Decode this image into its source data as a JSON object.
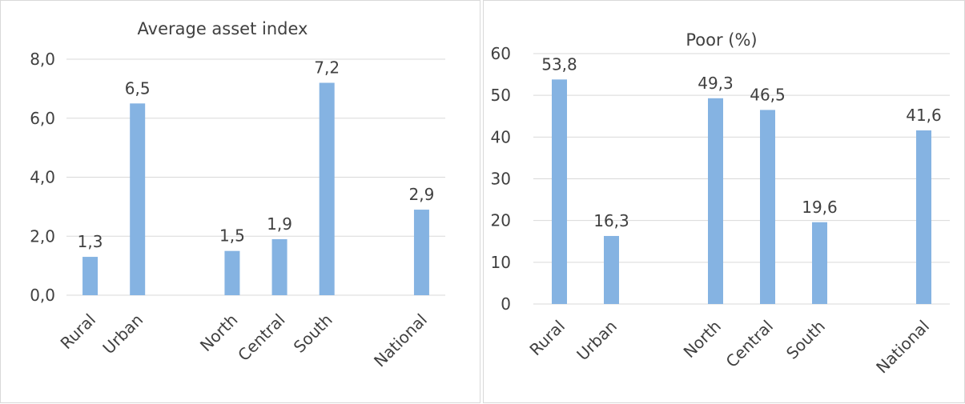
{
  "colors": {
    "bar": "#85b3e2",
    "grid": "#d9d9d9",
    "text": "#404040"
  },
  "chart_data": [
    {
      "type": "bar",
      "title": "Average asset  index",
      "categories": [
        "Rural",
        "Urban",
        "",
        "North",
        "Central",
        "South",
        "",
        "National"
      ],
      "values": [
        1.3,
        6.5,
        null,
        1.5,
        1.9,
        7.2,
        null,
        2.9
      ],
      "data_labels": [
        "1,3",
        "6,5",
        "",
        "1,5",
        "1,9",
        "7,2",
        "",
        "2,9"
      ],
      "yticks": [
        "0,0",
        "2,0",
        "4,0",
        "6,0",
        "8,0"
      ],
      "ylim": [
        0,
        8
      ],
      "grid": true
    },
    {
      "type": "bar",
      "title": "Poor (%)",
      "categories": [
        "Rural",
        "Urban",
        "",
        "North",
        "Central",
        "South",
        "",
        "National"
      ],
      "values": [
        53.8,
        16.3,
        null,
        49.3,
        46.5,
        19.6,
        null,
        41.6
      ],
      "data_labels": [
        "53,8",
        "16,3",
        "",
        "49,3",
        "46,5",
        "19,6",
        "",
        "41,6"
      ],
      "yticks": [
        "0",
        "10",
        "20",
        "30",
        "40",
        "50",
        "60"
      ],
      "ylim": [
        0,
        60
      ],
      "grid": true
    }
  ]
}
